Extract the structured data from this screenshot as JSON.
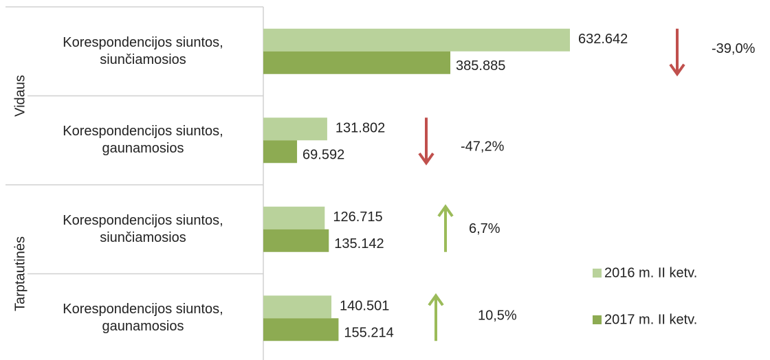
{
  "chart_data": {
    "type": "bar",
    "orientation": "horizontal",
    "groups": [
      "Vidaus",
      "Tarptautinės"
    ],
    "categories": [
      "Korespondencijos siuntos,\nsiunčiamosios",
      "Korespondencijos siuntos,\ngaunamosios",
      "Korespondencijos siuntos,\nsiunčiamosios",
      "Korespondencijos siuntos,\ngaunamosios"
    ],
    "series": [
      {
        "name": "2016 m. II ketv.",
        "color": "#b9d29b",
        "values": [
          632642,
          131802,
          126715,
          140501
        ],
        "value_labels": [
          "632.642",
          "131.802",
          "126.715",
          "140.501"
        ]
      },
      {
        "name": "2017 m. II ketv.",
        "color": "#8dab52",
        "values": [
          385885,
          69592,
          135142,
          155214
        ],
        "value_labels": [
          "385.885",
          "69.592",
          "135.142",
          "155.214"
        ]
      }
    ],
    "annotations": [
      "-39,0%",
      "-47,2%",
      "6,7%",
      "10,5%"
    ],
    "legend": "right"
  }
}
